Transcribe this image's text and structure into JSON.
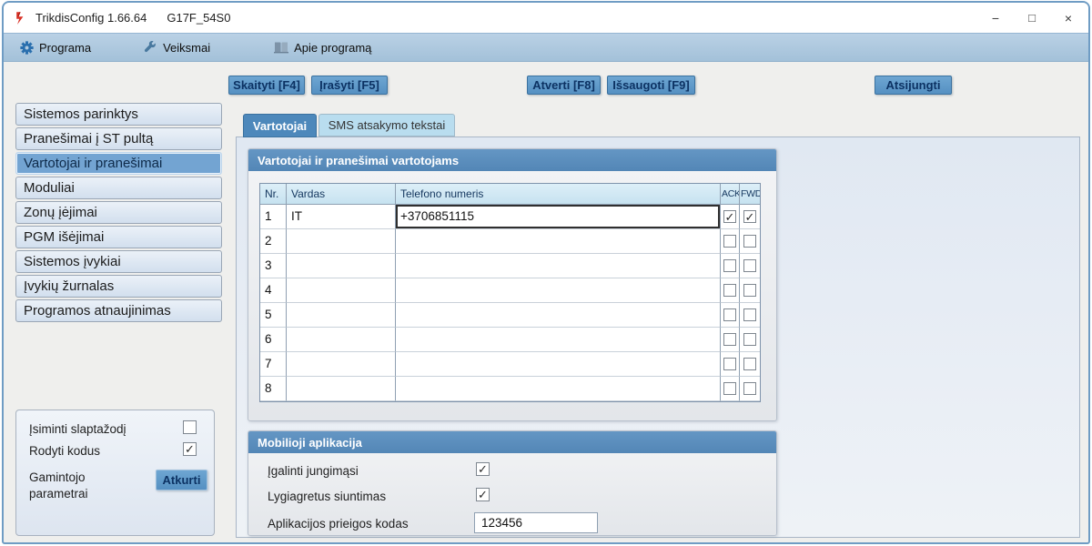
{
  "window": {
    "title": "TrikdisConfig 1.66.64",
    "device": "G17F_54S0",
    "controls": {
      "minimize": "−",
      "maximize": "□",
      "close": "×"
    }
  },
  "menu": {
    "items": [
      {
        "label": "Programa",
        "icon": "gear-icon"
      },
      {
        "label": "Veiksmai",
        "icon": "wrench-icon"
      },
      {
        "label": "Apie programą",
        "icon": "book-icon"
      }
    ]
  },
  "toolbar": {
    "read_label": "Skaityti [F4]",
    "write_label": "Įrašyti [F5]",
    "open_label": "Atverti [F8]",
    "save_label": "Išsaugoti [F9]",
    "disconnect_label": "Atsijungti"
  },
  "sidebar": {
    "items": [
      {
        "label": "Sistemos parinktys",
        "selected": false
      },
      {
        "label": "Pranešimai į ST pultą",
        "selected": false
      },
      {
        "label": "Vartotojai ir pranešimai",
        "selected": true
      },
      {
        "label": "Moduliai",
        "selected": false
      },
      {
        "label": "Zonų įėjimai",
        "selected": false
      },
      {
        "label": "PGM išėjimai",
        "selected": false
      },
      {
        "label": "Sistemos įvykiai",
        "selected": false
      },
      {
        "label": "Įvykių žurnalas",
        "selected": false
      },
      {
        "label": "Programos atnaujinimas",
        "selected": false
      }
    ],
    "footer": {
      "remember_password_label": "Įsiminti slaptažodį",
      "remember_password_checked": false,
      "show_codes_label": "Rodyti kodus",
      "show_codes_checked": true,
      "factory_label_line1": "Gamintojo",
      "factory_label_line2": "parametrai",
      "restore_button_label": "Atkurti"
    }
  },
  "tabs": [
    {
      "label": "Vartotojai",
      "active": true
    },
    {
      "label": "SMS atsakymo tekstai",
      "active": false
    }
  ],
  "users_section": {
    "title": "Vartotojai ir pranešimai vartotojams",
    "table": {
      "headers": {
        "nr": "Nr.",
        "name": "Vardas",
        "phone": "Telefono numeris",
        "ack": "ACK",
        "fwd": "FWD"
      },
      "rows": [
        {
          "nr": "1",
          "name": "IT",
          "phone": "+3706851115",
          "ack": true,
          "fwd": true,
          "phone_focused": true
        },
        {
          "nr": "2",
          "name": "",
          "phone": "",
          "ack": false,
          "fwd": false,
          "phone_focused": false
        },
        {
          "nr": "3",
          "name": "",
          "phone": "",
          "ack": false,
          "fwd": false,
          "phone_focused": false
        },
        {
          "nr": "4",
          "name": "",
          "phone": "",
          "ack": false,
          "fwd": false,
          "phone_focused": false
        },
        {
          "nr": "5",
          "name": "",
          "phone": "",
          "ack": false,
          "fwd": false,
          "phone_focused": false
        },
        {
          "nr": "6",
          "name": "",
          "phone": "",
          "ack": false,
          "fwd": false,
          "phone_focused": false
        },
        {
          "nr": "7",
          "name": "",
          "phone": "",
          "ack": false,
          "fwd": false,
          "phone_focused": false
        },
        {
          "nr": "8",
          "name": "",
          "phone": "",
          "ack": false,
          "fwd": false,
          "phone_focused": false
        }
      ]
    }
  },
  "mobile_section": {
    "title": "Mobilioji aplikacija",
    "enable_login_label": "Įgalinti jungimąsi",
    "enable_login_checked": true,
    "parallel_sending_label": "Lygiagretus siuntimas",
    "parallel_sending_checked": true,
    "app_code_label": "Aplikacijos prieigos kodas",
    "app_code_value": "123456"
  },
  "icons": {
    "check": "✓"
  },
  "colors": {
    "accent_blue": "#4d88bb",
    "button_blue": "#5b97c7",
    "menu_bar": "#aec8de",
    "selected_item": "#73a4d2",
    "group_header": "#5b8fbe",
    "table_header_bg": "#cbe4f0",
    "logo_red": "#d93025"
  }
}
